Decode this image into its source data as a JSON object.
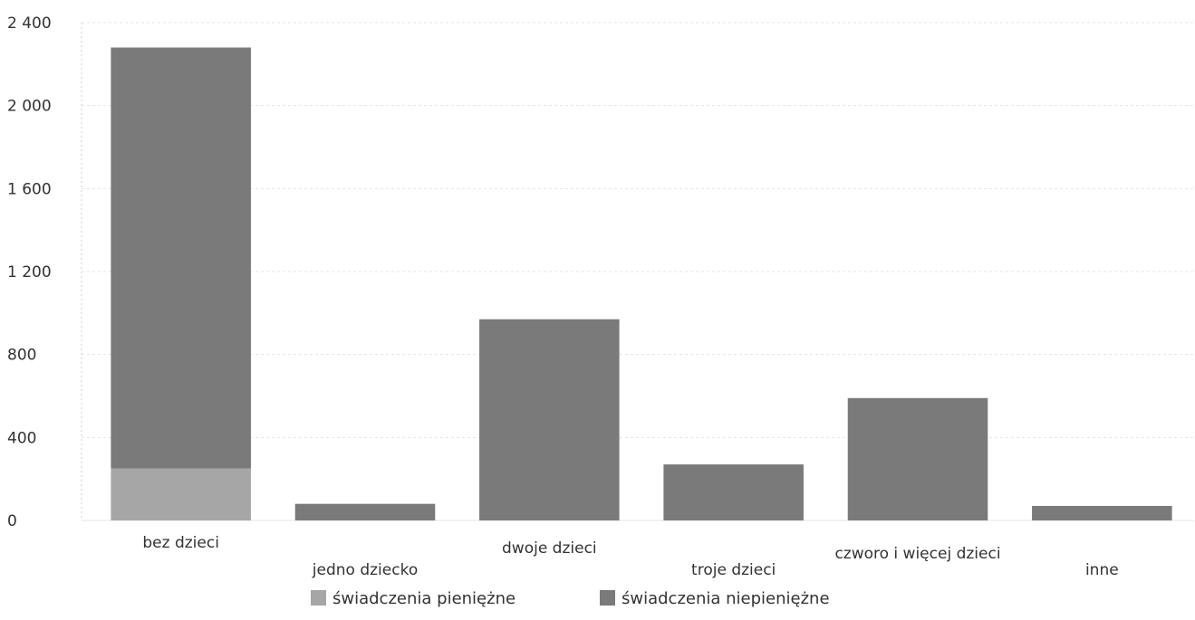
{
  "chart_data": {
    "type": "bar",
    "stacked": true,
    "categories": [
      "bez dzieci",
      "jedno dziecko",
      "dwoje dzieci",
      "troje dzieci",
      "czworo i więcej dzieci",
      "inne"
    ],
    "series": [
      {
        "name": "świadczenia pieniężne",
        "values": [
          250,
          0,
          0,
          0,
          0,
          0
        ],
        "color": "#a6a6a6"
      },
      {
        "name": "świadczenia niepieniężne",
        "values": [
          2030,
          80,
          970,
          270,
          590,
          70
        ],
        "color": "#7a7a7a"
      }
    ],
    "yticks": [
      "0",
      "400",
      "800",
      "1 200",
      "1 600",
      "2 000",
      "2 400"
    ],
    "ylim": [
      0,
      2400
    ],
    "grid": true,
    "legend_position": "bottom"
  }
}
